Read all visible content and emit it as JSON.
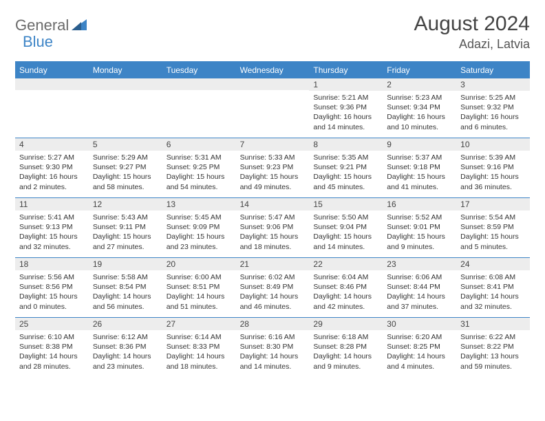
{
  "logo": {
    "text1": "General",
    "text2": "Blue"
  },
  "title": "August 2024",
  "location": "Adazi, Latvia",
  "colors": {
    "accent": "#3d84c6",
    "band": "#ededed",
    "text": "#333333",
    "logo_gray": "#6a6a6a"
  },
  "dow": [
    "Sunday",
    "Monday",
    "Tuesday",
    "Wednesday",
    "Thursday",
    "Friday",
    "Saturday"
  ],
  "weeks": [
    [
      {
        "n": "",
        "sr": "",
        "ss": "",
        "dl": ""
      },
      {
        "n": "",
        "sr": "",
        "ss": "",
        "dl": ""
      },
      {
        "n": "",
        "sr": "",
        "ss": "",
        "dl": ""
      },
      {
        "n": "",
        "sr": "",
        "ss": "",
        "dl": ""
      },
      {
        "n": "1",
        "sr": "Sunrise: 5:21 AM",
        "ss": "Sunset: 9:36 PM",
        "dl": "Daylight: 16 hours and 14 minutes."
      },
      {
        "n": "2",
        "sr": "Sunrise: 5:23 AM",
        "ss": "Sunset: 9:34 PM",
        "dl": "Daylight: 16 hours and 10 minutes."
      },
      {
        "n": "3",
        "sr": "Sunrise: 5:25 AM",
        "ss": "Sunset: 9:32 PM",
        "dl": "Daylight: 16 hours and 6 minutes."
      }
    ],
    [
      {
        "n": "4",
        "sr": "Sunrise: 5:27 AM",
        "ss": "Sunset: 9:30 PM",
        "dl": "Daylight: 16 hours and 2 minutes."
      },
      {
        "n": "5",
        "sr": "Sunrise: 5:29 AM",
        "ss": "Sunset: 9:27 PM",
        "dl": "Daylight: 15 hours and 58 minutes."
      },
      {
        "n": "6",
        "sr": "Sunrise: 5:31 AM",
        "ss": "Sunset: 9:25 PM",
        "dl": "Daylight: 15 hours and 54 minutes."
      },
      {
        "n": "7",
        "sr": "Sunrise: 5:33 AM",
        "ss": "Sunset: 9:23 PM",
        "dl": "Daylight: 15 hours and 49 minutes."
      },
      {
        "n": "8",
        "sr": "Sunrise: 5:35 AM",
        "ss": "Sunset: 9:21 PM",
        "dl": "Daylight: 15 hours and 45 minutes."
      },
      {
        "n": "9",
        "sr": "Sunrise: 5:37 AM",
        "ss": "Sunset: 9:18 PM",
        "dl": "Daylight: 15 hours and 41 minutes."
      },
      {
        "n": "10",
        "sr": "Sunrise: 5:39 AM",
        "ss": "Sunset: 9:16 PM",
        "dl": "Daylight: 15 hours and 36 minutes."
      }
    ],
    [
      {
        "n": "11",
        "sr": "Sunrise: 5:41 AM",
        "ss": "Sunset: 9:13 PM",
        "dl": "Daylight: 15 hours and 32 minutes."
      },
      {
        "n": "12",
        "sr": "Sunrise: 5:43 AM",
        "ss": "Sunset: 9:11 PM",
        "dl": "Daylight: 15 hours and 27 minutes."
      },
      {
        "n": "13",
        "sr": "Sunrise: 5:45 AM",
        "ss": "Sunset: 9:09 PM",
        "dl": "Daylight: 15 hours and 23 minutes."
      },
      {
        "n": "14",
        "sr": "Sunrise: 5:47 AM",
        "ss": "Sunset: 9:06 PM",
        "dl": "Daylight: 15 hours and 18 minutes."
      },
      {
        "n": "15",
        "sr": "Sunrise: 5:50 AM",
        "ss": "Sunset: 9:04 PM",
        "dl": "Daylight: 15 hours and 14 minutes."
      },
      {
        "n": "16",
        "sr": "Sunrise: 5:52 AM",
        "ss": "Sunset: 9:01 PM",
        "dl": "Daylight: 15 hours and 9 minutes."
      },
      {
        "n": "17",
        "sr": "Sunrise: 5:54 AM",
        "ss": "Sunset: 8:59 PM",
        "dl": "Daylight: 15 hours and 5 minutes."
      }
    ],
    [
      {
        "n": "18",
        "sr": "Sunrise: 5:56 AM",
        "ss": "Sunset: 8:56 PM",
        "dl": "Daylight: 15 hours and 0 minutes."
      },
      {
        "n": "19",
        "sr": "Sunrise: 5:58 AM",
        "ss": "Sunset: 8:54 PM",
        "dl": "Daylight: 14 hours and 56 minutes."
      },
      {
        "n": "20",
        "sr": "Sunrise: 6:00 AM",
        "ss": "Sunset: 8:51 PM",
        "dl": "Daylight: 14 hours and 51 minutes."
      },
      {
        "n": "21",
        "sr": "Sunrise: 6:02 AM",
        "ss": "Sunset: 8:49 PM",
        "dl": "Daylight: 14 hours and 46 minutes."
      },
      {
        "n": "22",
        "sr": "Sunrise: 6:04 AM",
        "ss": "Sunset: 8:46 PM",
        "dl": "Daylight: 14 hours and 42 minutes."
      },
      {
        "n": "23",
        "sr": "Sunrise: 6:06 AM",
        "ss": "Sunset: 8:44 PM",
        "dl": "Daylight: 14 hours and 37 minutes."
      },
      {
        "n": "24",
        "sr": "Sunrise: 6:08 AM",
        "ss": "Sunset: 8:41 PM",
        "dl": "Daylight: 14 hours and 32 minutes."
      }
    ],
    [
      {
        "n": "25",
        "sr": "Sunrise: 6:10 AM",
        "ss": "Sunset: 8:38 PM",
        "dl": "Daylight: 14 hours and 28 minutes."
      },
      {
        "n": "26",
        "sr": "Sunrise: 6:12 AM",
        "ss": "Sunset: 8:36 PM",
        "dl": "Daylight: 14 hours and 23 minutes."
      },
      {
        "n": "27",
        "sr": "Sunrise: 6:14 AM",
        "ss": "Sunset: 8:33 PM",
        "dl": "Daylight: 14 hours and 18 minutes."
      },
      {
        "n": "28",
        "sr": "Sunrise: 6:16 AM",
        "ss": "Sunset: 8:30 PM",
        "dl": "Daylight: 14 hours and 14 minutes."
      },
      {
        "n": "29",
        "sr": "Sunrise: 6:18 AM",
        "ss": "Sunset: 8:28 PM",
        "dl": "Daylight: 14 hours and 9 minutes."
      },
      {
        "n": "30",
        "sr": "Sunrise: 6:20 AM",
        "ss": "Sunset: 8:25 PM",
        "dl": "Daylight: 14 hours and 4 minutes."
      },
      {
        "n": "31",
        "sr": "Sunrise: 6:22 AM",
        "ss": "Sunset: 8:22 PM",
        "dl": "Daylight: 13 hours and 59 minutes."
      }
    ]
  ]
}
